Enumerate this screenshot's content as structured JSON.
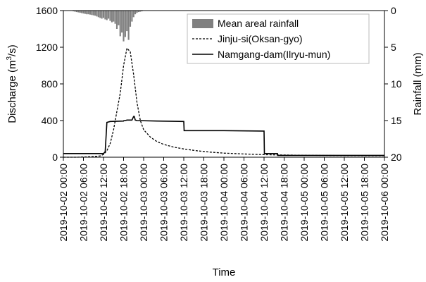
{
  "chart_data": {
    "type": "line",
    "xlabel": "Time",
    "ylabel_left_prefix": "Discharge (m",
    "ylabel_left_sup": "3",
    "ylabel_left_suffix": "/s)",
    "ylabel_right": "Rainfall (mm)",
    "ylim_left": [
      0,
      1600
    ],
    "yticks_left": [
      "0",
      "400",
      "800",
      "1200",
      "1600"
    ],
    "ylim_right": [
      20,
      0
    ],
    "yticks_right": [
      "0",
      "5",
      "10",
      "15",
      "20"
    ],
    "x_start_hours": 0,
    "x_end_hours": 96,
    "x_tick_labels": [
      "2019-10-02 00:00",
      "2019-10-02 06:00",
      "2019-10-02 12:00",
      "2019-10-02 18:00",
      "2019-10-03 00:00",
      "2019-10-03 06:00",
      "2019-10-03 12:00",
      "2019-10-03 18:00",
      "2019-10-04 00:00",
      "2019-10-04 06:00",
      "2019-10-04 12:00",
      "2019-10-04 18:00",
      "2019-10-05 00:00",
      "2019-10-05 06:00",
      "2019-10-05 12:00",
      "2019-10-05 18:00",
      "2019-10-06 00:00"
    ],
    "legend_position": "top-right",
    "series": [
      {
        "name": "Mean areal rainfall",
        "kind": "bar-inverted",
        "axis": "right",
        "color": "#808080",
        "x_hours": [
          3,
          3.5,
          4,
          4.5,
          5,
          5.5,
          6,
          6.5,
          7,
          7.5,
          8,
          8.5,
          9,
          9.5,
          10,
          10.5,
          11,
          11.5,
          12,
          12.5,
          13,
          13.5,
          14,
          14.5,
          15,
          15.5,
          16,
          16.5,
          17,
          17.5,
          18,
          18.5,
          19,
          19.5,
          20,
          20.5,
          21,
          21.5,
          22,
          22.5,
          23,
          23.5,
          24
        ],
        "values": [
          0.1,
          0.15,
          0.2,
          0.25,
          0.3,
          0.35,
          0.4,
          0.45,
          0.5,
          0.5,
          0.55,
          0.6,
          0.65,
          0.7,
          0.8,
          0.9,
          1.0,
          1.1,
          1.0,
          1.2,
          1.3,
          1.1,
          1.4,
          1.6,
          1.5,
          1.8,
          2.5,
          2.0,
          3.5,
          3.0,
          4.2,
          3.6,
          2.8,
          4.0,
          2.2,
          1.5,
          0.9,
          0.5,
          0.3,
          0.2,
          0.15,
          0.1,
          0.05
        ]
      },
      {
        "name": "Jinju-si(Oksan-gyo)",
        "kind": "line-dashed",
        "axis": "left",
        "color": "#000000",
        "x_hours": [
          0,
          4,
          8,
          10,
          11,
          12,
          13,
          14,
          15,
          16,
          17,
          18,
          19,
          20,
          21,
          22,
          23,
          24,
          26,
          28,
          30,
          33,
          36,
          40,
          44,
          48,
          54,
          60,
          66,
          72,
          78,
          84,
          90,
          96
        ],
        "values": [
          0,
          0,
          5,
          10,
          15,
          30,
          70,
          150,
          300,
          500,
          700,
          1000,
          1190,
          1150,
          900,
          600,
          400,
          300,
          220,
          170,
          140,
          110,
          90,
          70,
          55,
          45,
          35,
          28,
          24,
          21,
          19,
          18,
          17,
          16
        ]
      },
      {
        "name": "Namgang-dam(Ilryu-mun)",
        "kind": "line-solid",
        "axis": "left",
        "color": "#000000",
        "x_hours": [
          0,
          12,
          12.5,
          13,
          14,
          18,
          18.1,
          18.5,
          19,
          20.5,
          21,
          21.2,
          21.5,
          22,
          28,
          36,
          36.1,
          48,
          60,
          60.1,
          61,
          64,
          64.1,
          96
        ],
        "values": [
          40,
          40,
          60,
          380,
          390,
          395,
          400,
          400,
          405,
          405,
          445,
          445,
          405,
          400,
          395,
          390,
          290,
          290,
          285,
          40,
          40,
          40,
          20,
          20
        ]
      }
    ]
  }
}
